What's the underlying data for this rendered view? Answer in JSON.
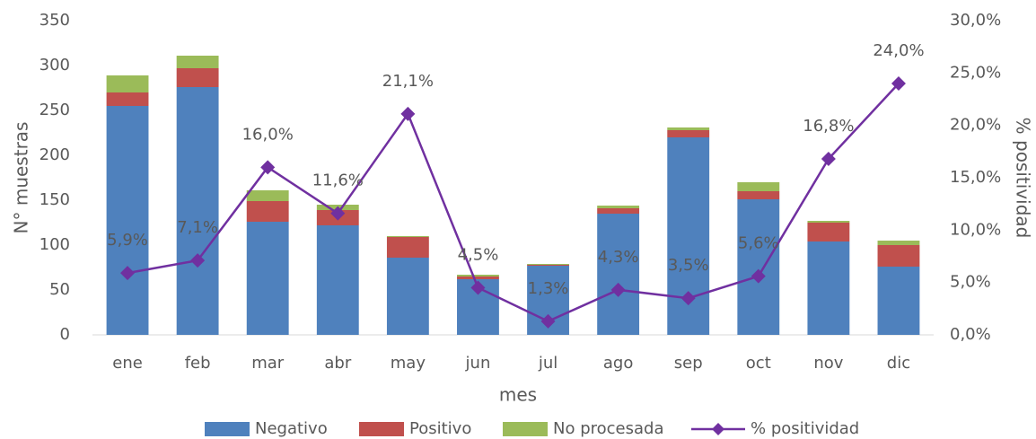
{
  "chart_data": {
    "type": "bar",
    "stacked": true,
    "categories": [
      "ene",
      "feb",
      "mar",
      "abr",
      "may",
      "jun",
      "jul",
      "ago",
      "sep",
      "oct",
      "nov",
      "dic"
    ],
    "x_label": "mes",
    "y_label": "N° muestras",
    "y2_label": "% positividad",
    "ylim": [
      0,
      350
    ],
    "yticks": [
      0,
      50,
      100,
      150,
      200,
      250,
      300,
      350
    ],
    "y2lim": [
      0,
      30
    ],
    "y2ticks": [
      {
        "value": 0,
        "label": "0,0%"
      },
      {
        "value": 5,
        "label": "5,0%"
      },
      {
        "value": 10,
        "label": "10,0%"
      },
      {
        "value": 15,
        "label": "15,0%"
      },
      {
        "value": 20,
        "label": "20,0%"
      },
      {
        "value": 25,
        "label": "25,0%"
      },
      {
        "value": 30,
        "label": "30,0%"
      }
    ],
    "grid": false,
    "legend": "bottom",
    "series": [
      {
        "name": "Negativo",
        "color": "#4f81bd",
        "type": "bar",
        "values": [
          255,
          276,
          126,
          122,
          86,
          62,
          77,
          135,
          220,
          151,
          104,
          76
        ]
      },
      {
        "name": "Positivo",
        "color": "#c0504d",
        "type": "bar",
        "values": [
          15,
          21,
          23,
          17,
          23,
          3,
          1,
          6,
          8,
          9,
          21,
          24
        ]
      },
      {
        "name": "No procesada",
        "color": "#9bbb59",
        "type": "bar",
        "values": [
          19,
          14,
          12,
          6,
          1,
          2,
          1,
          3,
          3,
          10,
          2,
          5
        ]
      },
      {
        "name": "% positividad",
        "color": "#7030a0",
        "type": "line",
        "axis": "y2",
        "values": [
          5.9,
          7.1,
          16.0,
          11.6,
          21.1,
          4.5,
          1.3,
          4.3,
          3.5,
          5.6,
          16.8,
          24.0
        ],
        "value_labels": [
          "5,9%",
          "7,1%",
          "16,0%",
          "11,6%",
          "21,1%",
          "4,5%",
          "1,3%",
          "4,3%",
          "3,5%",
          "5,6%",
          "16,8%",
          "24,0%"
        ]
      }
    ]
  }
}
